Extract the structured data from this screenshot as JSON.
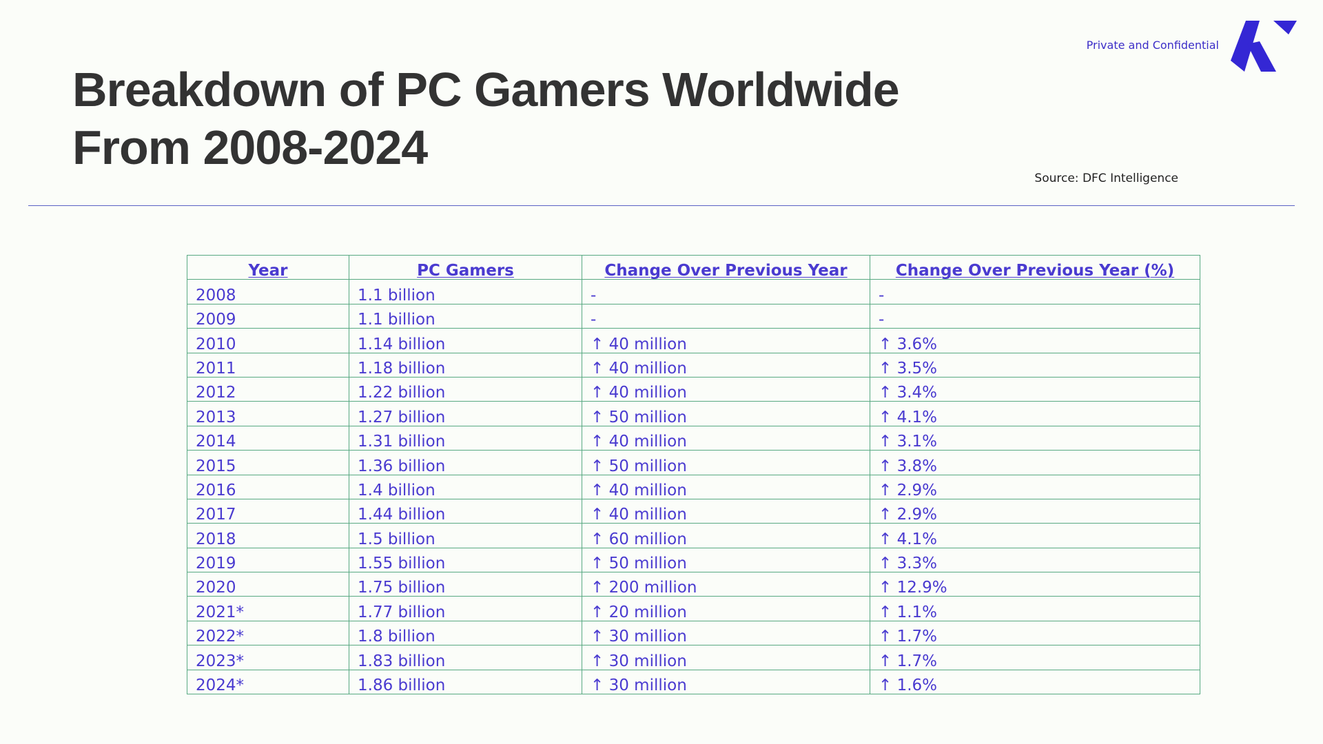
{
  "header": {
    "title": "Breakdown of PC Gamers Worldwide From 2008-2024",
    "confidential": "Private and Confidential",
    "source": "Source: DFC Intelligence"
  },
  "brand": {
    "accent": "#3427d4",
    "logo_icon": "brand-logo-icon"
  },
  "table": {
    "headers": [
      "Year",
      "PC Gamers",
      "Change Over Previous Year",
      "Change Over Previous Year (%)"
    ],
    "rows": [
      [
        "2008",
        "1.1 billion",
        "-",
        "-"
      ],
      [
        "2009",
        "1.1 billion",
        "-",
        "-"
      ],
      [
        "2010",
        "1.14 billion",
        "↑ 40 million",
        "↑ 3.6%"
      ],
      [
        "2011",
        "1.18 billion",
        "↑ 40 million",
        "↑ 3.5%"
      ],
      [
        "2012",
        "1.22 billion",
        "↑ 40 million",
        "↑ 3.4%"
      ],
      [
        "2013",
        "1.27 billion",
        "↑ 50 million",
        "↑ 4.1%"
      ],
      [
        "2014",
        "1.31 billion",
        "↑ 40 million",
        "↑ 3.1%"
      ],
      [
        "2015",
        "1.36 billion",
        "↑ 50 million",
        "↑ 3.8%"
      ],
      [
        "2016",
        "1.4 billion",
        "↑ 40 million",
        "↑ 2.9%"
      ],
      [
        "2017",
        "1.44 billion",
        "↑ 40 million",
        "↑ 2.9%"
      ],
      [
        "2018",
        "1.5 billion",
        "↑ 60 million",
        "↑ 4.1%"
      ],
      [
        "2019",
        "1.55 billion",
        "↑ 50 million",
        "↑ 3.3%"
      ],
      [
        "2020",
        "1.75 billion",
        "↑ 200 million",
        "↑ 12.9%"
      ],
      [
        "2021*",
        "1.77 billion",
        "↑ 20 million",
        "↑ 1.1%"
      ],
      [
        "2022*",
        "1.8 billion",
        "↑ 30 million",
        "↑ 1.7%"
      ],
      [
        "2023*",
        "1.83 billion",
        "↑ 30 million",
        "↑ 1.7%"
      ],
      [
        "2024*",
        "1.86 billion",
        "↑ 30 million",
        "↑ 1.6%"
      ]
    ]
  }
}
